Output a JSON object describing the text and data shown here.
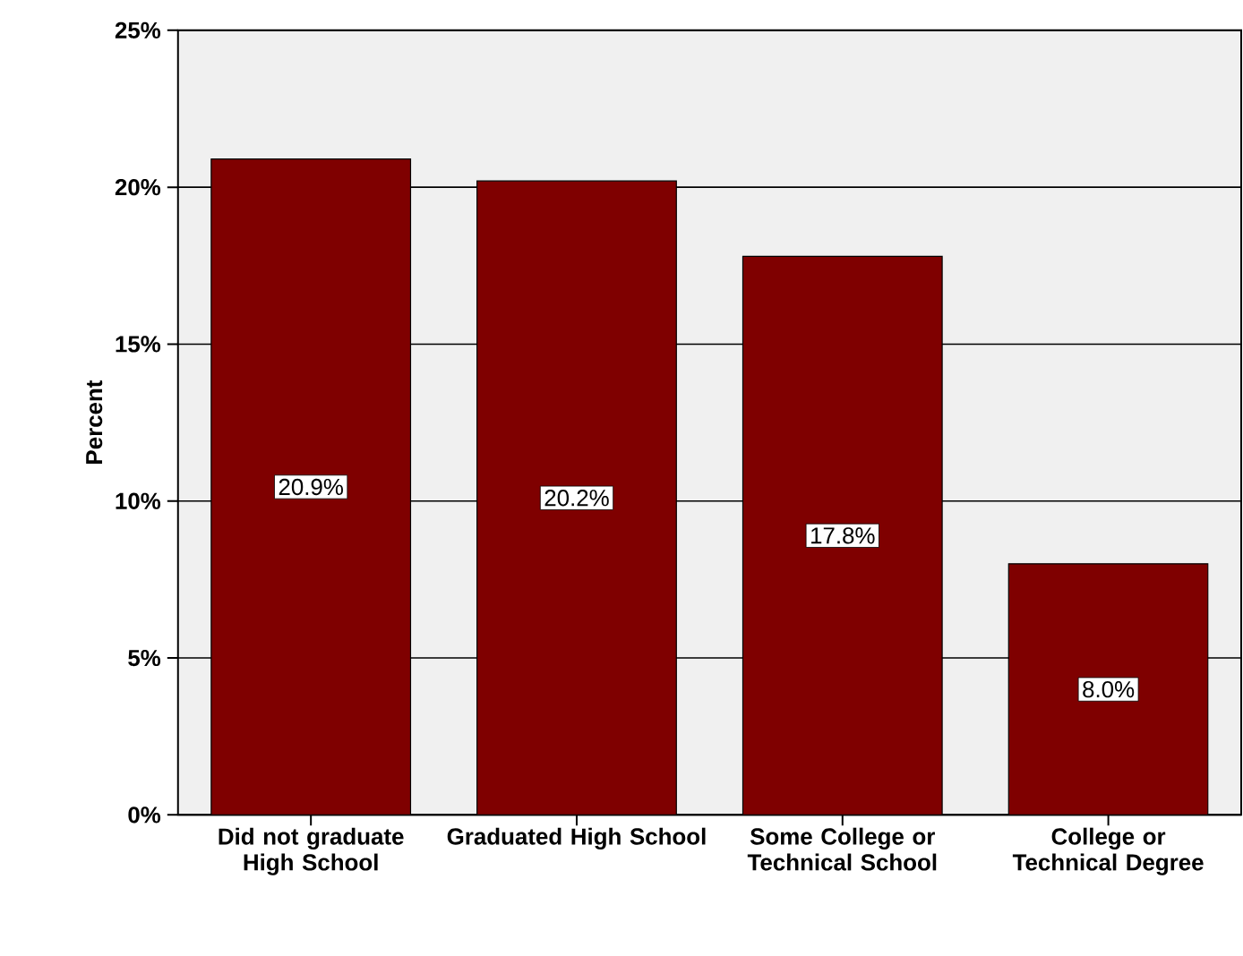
{
  "chart_data": {
    "type": "bar",
    "ylabel": "Percent",
    "categories": [
      "Did not graduate High School",
      "Graduated High School",
      "Some College or Technical School",
      "College or Technical Degree"
    ],
    "values": [
      20.9,
      20.2,
      17.8,
      8.0
    ],
    "value_labels": [
      "20.9%",
      "20.2%",
      "17.8%",
      "8.0%"
    ],
    "color": "#7f0000",
    "ylim": [
      0,
      25
    ],
    "yticks": [
      {
        "value": 0,
        "label": "0%"
      },
      {
        "value": 5,
        "label": "5%"
      },
      {
        "value": 10,
        "label": "10%"
      },
      {
        "value": 15,
        "label": "15%"
      },
      {
        "value": 20,
        "label": "20%"
      },
      {
        "value": 25,
        "label": "25%"
      }
    ],
    "grid": "y"
  }
}
